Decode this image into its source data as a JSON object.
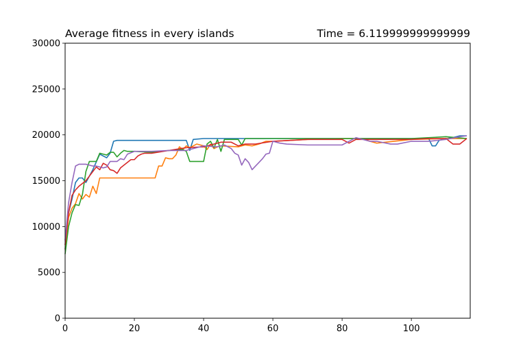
{
  "chart_data": {
    "type": "line",
    "title": "Average fitness in every islands",
    "subtitle": "Time = 6.119999999999999",
    "xlabel": "",
    "ylabel": "",
    "xlim": [
      0,
      117
    ],
    "ylim": [
      0,
      30000
    ],
    "xticks": [
      0,
      20,
      40,
      60,
      80,
      100
    ],
    "yticks": [
      0,
      5000,
      10000,
      15000,
      20000,
      25000,
      30000
    ],
    "grid": false,
    "legend": "none",
    "series": [
      {
        "color": "#1f77b4",
        "x": [
          0,
          1,
          2,
          3,
          4,
          5,
          6,
          7,
          8,
          10,
          12,
          13,
          14,
          15,
          20,
          25,
          30,
          33,
          35,
          36,
          37,
          40,
          45,
          50,
          55,
          60,
          70,
          80,
          90,
          100,
          105,
          106,
          107,
          108,
          110,
          112,
          114,
          116
        ],
        "y": [
          7500,
          11500,
          13000,
          14800,
          15300,
          15300,
          14800,
          15500,
          16200,
          17900,
          17500,
          18000,
          19300,
          19400,
          19400,
          19400,
          19400,
          19400,
          19400,
          18300,
          19500,
          19600,
          19600,
          19600,
          19600,
          19600,
          19600,
          19600,
          19600,
          19600,
          19600,
          18800,
          18800,
          19400,
          19600,
          19700,
          19900,
          19900
        ]
      },
      {
        "color": "#ff7f0e",
        "x": [
          0,
          1,
          2,
          3,
          4,
          5,
          6,
          7,
          8,
          9,
          10,
          11,
          15,
          20,
          25,
          26,
          27,
          28,
          29,
          30,
          31,
          32,
          33,
          34,
          35,
          36,
          38,
          40,
          41,
          42,
          43,
          44,
          45,
          50,
          52,
          54,
          56,
          58,
          60,
          70,
          80,
          86,
          88,
          90,
          100,
          110,
          116
        ],
        "y": [
          7500,
          11000,
          12000,
          12500,
          13600,
          13000,
          13500,
          13200,
          14400,
          13600,
          15300,
          15300,
          15300,
          15300,
          15300,
          15300,
          16600,
          16600,
          17500,
          17400,
          17400,
          17800,
          18700,
          18400,
          18800,
          18600,
          19000,
          18800,
          18400,
          19000,
          18500,
          18700,
          18800,
          18700,
          18900,
          18800,
          19000,
          19300,
          19300,
          19500,
          19600,
          19600,
          19300,
          19100,
          19500,
          19600,
          19600
        ]
      },
      {
        "color": "#2ca02c",
        "x": [
          0,
          1,
          2,
          3,
          4,
          5,
          6,
          7,
          8,
          9,
          10,
          11,
          12,
          13,
          14,
          15,
          16,
          17,
          18,
          20,
          25,
          30,
          34,
          35,
          36,
          40,
          41,
          42,
          43,
          44,
          45,
          46,
          50,
          51,
          52,
          60,
          70,
          80,
          90,
          100,
          110,
          116
        ],
        "y": [
          7000,
          10000,
          11500,
          12400,
          12300,
          13500,
          16000,
          17100,
          17100,
          17100,
          18000,
          17900,
          17800,
          18100,
          18100,
          17600,
          18000,
          18300,
          18200,
          18200,
          18100,
          18300,
          18400,
          18200,
          17100,
          17100,
          19000,
          19300,
          18600,
          19500,
          18200,
          19500,
          19500,
          18900,
          19600,
          19600,
          19600,
          19600,
          19600,
          19600,
          19800,
          19600
        ]
      },
      {
        "color": "#d62728",
        "x": [
          0,
          1,
          2,
          3,
          4,
          5,
          6,
          7,
          8,
          9,
          10,
          11,
          12,
          13,
          14,
          15,
          16,
          17,
          18,
          19,
          20,
          21,
          22,
          23,
          25,
          30,
          35,
          40,
          45,
          48,
          50,
          52,
          55,
          60,
          70,
          80,
          82,
          84,
          90,
          100,
          105,
          110,
          112,
          114,
          116
        ],
        "y": [
          8000,
          11500,
          13400,
          14000,
          14400,
          14700,
          15000,
          15500,
          16000,
          16500,
          16200,
          16900,
          16700,
          16200,
          16100,
          15800,
          16400,
          16700,
          17000,
          17300,
          17300,
          17700,
          17900,
          18000,
          18000,
          18300,
          18600,
          18700,
          19200,
          19200,
          18800,
          19000,
          19000,
          19300,
          19500,
          19500,
          19100,
          19500,
          19500,
          19500,
          19600,
          19600,
          19000,
          19000,
          19600
        ]
      },
      {
        "color": "#9467bd",
        "x": [
          0,
          1,
          2,
          3,
          4,
          5,
          6,
          7,
          8,
          9,
          10,
          11,
          12,
          13,
          14,
          15,
          16,
          17,
          18,
          20,
          25,
          30,
          35,
          40,
          44,
          46,
          48,
          49,
          50,
          51,
          52,
          53,
          54,
          55,
          56,
          57,
          58,
          59,
          60,
          62,
          64,
          70,
          75,
          80,
          84,
          86,
          88,
          90,
          94,
          96,
          100,
          105,
          110,
          114,
          116
        ],
        "y": [
          8500,
          12600,
          14800,
          16600,
          16800,
          16800,
          16800,
          16700,
          16600,
          16600,
          16500,
          16400,
          16500,
          17100,
          17100,
          17100,
          17400,
          17300,
          17900,
          18200,
          18200,
          18300,
          18300,
          18800,
          18700,
          18900,
          18500,
          18000,
          17800,
          16700,
          17400,
          17000,
          16200,
          16600,
          17000,
          17400,
          17900,
          18000,
          19300,
          19100,
          19000,
          18900,
          18900,
          18900,
          19700,
          19500,
          19300,
          19300,
          19000,
          19000,
          19300,
          19300,
          19500,
          19800,
          19900
        ]
      }
    ]
  }
}
